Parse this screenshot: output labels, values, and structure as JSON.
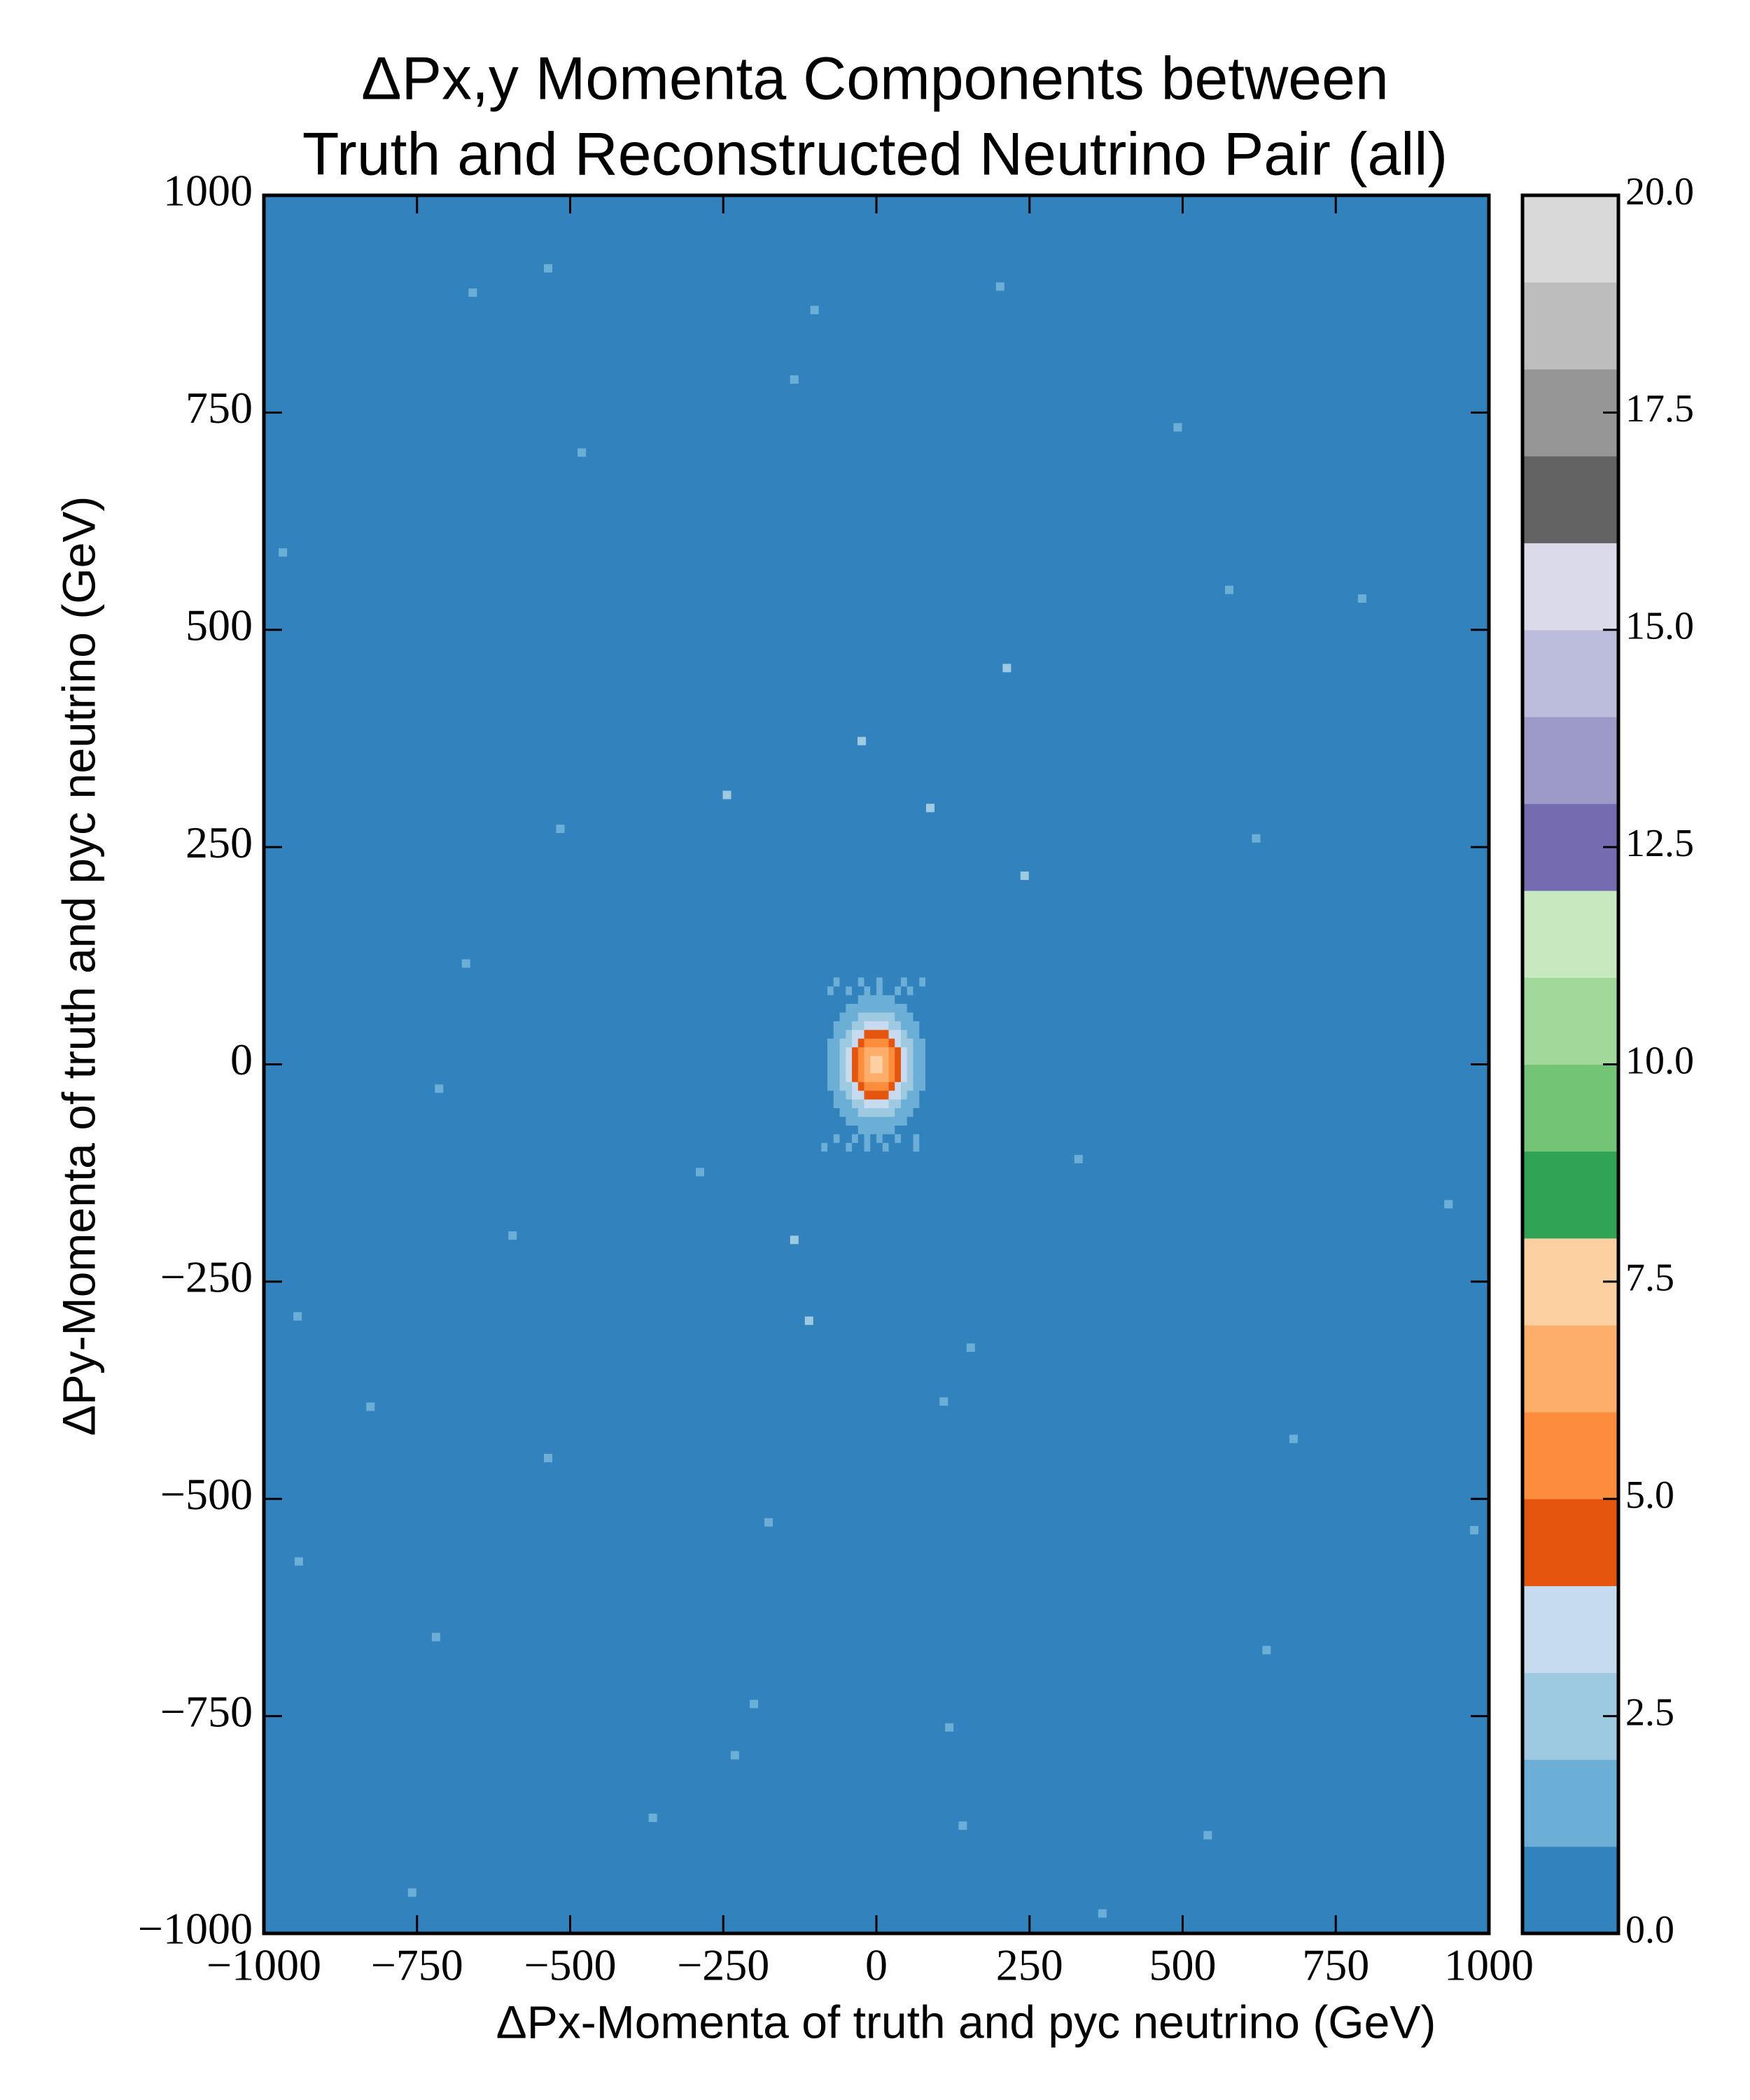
{
  "chart_data": {
    "type": "hist2d",
    "title": [
      "ΔPx,y Momenta Components between",
      "Truth and Reconstructed Neutrino Pair (all)"
    ],
    "xlabel": "ΔPx-Momenta of truth and pyc neutrino (GeV)",
    "ylabel": "ΔPy-Momenta of truth and pyc neutrino (GeV)",
    "xlim": [
      -1000,
      1000
    ],
    "ylim": [
      -1000,
      1000
    ],
    "xticks": [
      {
        "value": -1000,
        "label": "−1000"
      },
      {
        "value": -750,
        "label": "−750"
      },
      {
        "value": -500,
        "label": "−500"
      },
      {
        "value": -250,
        "label": "−250"
      },
      0,
      250,
      500,
      750,
      1000
    ],
    "yticks": [
      {
        "value": -1000,
        "label": "−1000"
      },
      {
        "value": -750,
        "label": "−750"
      },
      {
        "value": -500,
        "label": "−500"
      },
      {
        "value": -250,
        "label": "−250"
      },
      0,
      250,
      500,
      750,
      1000
    ],
    "clim": [
      0,
      20
    ],
    "cticks": [
      {
        "value": 0,
        "label": "0.0"
      },
      2.5,
      {
        "value": 5,
        "label": "5.0"
      },
      7.5,
      {
        "value": 10,
        "label": "10.0"
      },
      12.5,
      {
        "value": 15,
        "label": "15.0"
      },
      17.5,
      {
        "value": 20,
        "label": "20.0"
      }
    ],
    "colormap": [
      "#3182bd",
      "#6baed6",
      "#9ecae1",
      "#c6dbef",
      "#e6550d",
      "#fd8d3c",
      "#fdae6b",
      "#fdd0a2",
      "#31a354",
      "#74c476",
      "#a1d99b",
      "#c7e9c0",
      "#756bb1",
      "#9e9ac8",
      "#bcbddc",
      "#dadaeb",
      "#636363",
      "#969696",
      "#bdbdbd",
      "#d9d9d9"
    ],
    "xbins": [
      -100,
      -90,
      -80,
      -70,
      -60,
      -50,
      -40,
      -30,
      -20,
      -10,
      0,
      10,
      20,
      30,
      40,
      50,
      60,
      70,
      80,
      90,
      100
    ],
    "ybins": [
      -100,
      -90,
      -80,
      -70,
      -60,
      -50,
      -40,
      -30,
      -20,
      -10,
      0,
      10,
      20,
      30,
      40,
      50,
      60,
      70,
      80,
      90,
      100
    ],
    "values": [
      [
        0,
        1,
        0,
        0,
        0,
        1,
        0,
        0,
        1,
        0,
        0,
        1,
        0,
        0,
        0,
        0,
        1,
        0,
        0,
        0
      ],
      [
        0,
        0,
        0,
        1,
        0,
        0,
        1,
        0,
        1,
        0,
        1,
        0,
        0,
        1,
        0,
        0,
        1,
        0,
        0,
        0
      ],
      [
        0,
        0,
        0,
        0,
        0,
        0,
        0,
        1,
        1,
        1,
        1,
        1,
        1,
        0,
        0,
        0,
        0,
        0,
        0,
        0
      ],
      [
        0,
        0,
        0,
        0,
        0,
        1,
        1,
        1,
        1,
        1,
        1,
        1,
        1,
        1,
        1,
        0,
        0,
        0,
        0,
        0
      ],
      [
        0,
        0,
        0,
        0,
        1,
        1,
        1,
        2,
        2,
        2,
        2,
        2,
        2,
        1,
        1,
        1,
        0,
        0,
        0,
        0
      ],
      [
        0,
        0,
        0,
        1,
        1,
        1,
        2,
        2,
        3,
        3,
        3,
        3,
        2,
        2,
        1,
        1,
        1,
        0,
        0,
        0
      ],
      [
        0,
        0,
        0,
        1,
        1,
        2,
        3,
        3,
        4,
        4,
        4,
        4,
        3,
        3,
        2,
        1,
        1,
        0,
        0,
        0
      ],
      [
        0,
        0,
        1,
        1,
        2,
        2,
        3,
        4,
        5,
        5,
        5,
        5,
        4,
        3,
        2,
        2,
        1,
        1,
        0,
        0
      ],
      [
        0,
        0,
        1,
        1,
        2,
        3,
        4,
        5,
        6,
        6,
        6,
        6,
        5,
        4,
        3,
        2,
        1,
        1,
        0,
        0
      ],
      [
        0,
        0,
        1,
        1,
        2,
        3,
        4,
        5,
        6,
        7,
        7,
        6,
        5,
        4,
        3,
        2,
        1,
        1,
        0,
        0
      ],
      [
        0,
        0,
        1,
        1,
        2,
        3,
        4,
        5,
        6,
        7,
        7,
        6,
        5,
        4,
        3,
        2,
        1,
        1,
        0,
        0
      ],
      [
        0,
        0,
        1,
        1,
        2,
        3,
        4,
        5,
        6,
        6,
        6,
        6,
        5,
        4,
        3,
        2,
        1,
        1,
        0,
        0
      ],
      [
        0,
        0,
        1,
        1,
        2,
        2,
        3,
        4,
        5,
        5,
        5,
        5,
        4,
        3,
        2,
        2,
        1,
        1,
        0,
        0
      ],
      [
        0,
        0,
        0,
        1,
        1,
        2,
        3,
        3,
        4,
        4,
        4,
        4,
        3,
        3,
        2,
        1,
        1,
        0,
        0,
        0
      ],
      [
        0,
        0,
        0,
        1,
        1,
        1,
        2,
        2,
        3,
        3,
        3,
        3,
        2,
        2,
        1,
        1,
        1,
        0,
        0,
        0
      ],
      [
        0,
        0,
        0,
        0,
        1,
        1,
        1,
        2,
        2,
        2,
        2,
        2,
        2,
        1,
        1,
        1,
        0,
        0,
        0,
        0
      ],
      [
        0,
        0,
        0,
        0,
        0,
        1,
        1,
        1,
        1,
        1,
        1,
        1,
        1,
        1,
        1,
        0,
        0,
        0,
        0,
        0
      ],
      [
        0,
        0,
        0,
        0,
        0,
        0,
        0,
        1,
        1,
        1,
        1,
        1,
        1,
        0,
        0,
        0,
        0,
        0,
        0,
        0
      ],
      [
        0,
        0,
        1,
        0,
        0,
        1,
        0,
        0,
        1,
        0,
        1,
        0,
        0,
        1,
        0,
        1,
        0,
        0,
        0,
        0
      ],
      [
        0,
        0,
        0,
        1,
        0,
        0,
        0,
        1,
        0,
        0,
        1,
        0,
        0,
        0,
        1,
        0,
        0,
        1,
        0,
        0
      ]
    ],
    "sparse": {
      "x": [
        -536,
        202,
        -101,
        -659,
        -134,
        492,
        -481,
        -969,
        576,
        793,
        213,
        -516,
        620,
        -670,
        -714,
        -945,
        -594,
        934,
        -536,
        681,
        -826,
        -176,
        -943,
        976,
        -719,
        637,
        -200,
        119,
        -231,
        -365,
        141,
        541,
        -758,
        369,
        -244,
        242,
        -134,
        154,
        -110,
        88,
        -288,
        330,
        -24,
        110
      ],
      "y": [
        916,
        895,
        868,
        888,
        788,
        733,
        704,
        589,
        546,
        536,
        456,
        271,
        260,
        116,
        -28,
        -290,
        -197,
        -161,
        -453,
        -431,
        -394,
        -527,
        -572,
        -536,
        -659,
        -674,
        -736,
        -763,
        -795,
        -867,
        -876,
        -887,
        -953,
        -977,
        310,
        217,
        -202,
        -326,
        -295,
        295,
        -124,
        -109,
        372,
        -388
      ],
      "values": [
        1,
        1,
        1,
        1,
        1,
        1,
        1,
        1,
        1,
        1,
        2,
        1,
        1,
        1,
        1,
        1,
        1,
        1,
        1,
        1,
        1,
        1,
        1,
        1,
        1,
        1,
        1,
        1,
        1,
        1,
        1,
        1,
        1,
        1,
        2,
        2,
        2,
        1,
        2,
        2,
        1,
        1,
        2,
        1
      ]
    }
  }
}
